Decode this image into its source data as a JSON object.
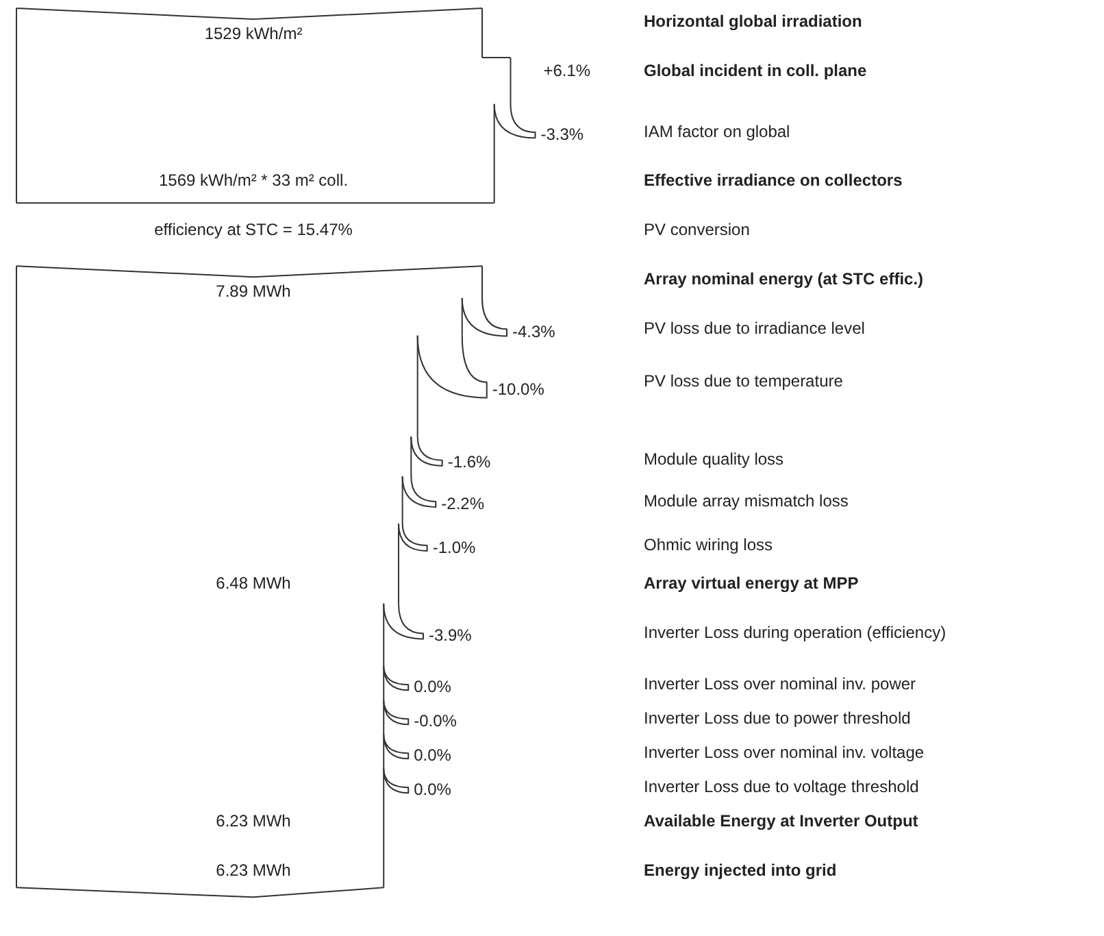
{
  "chart_data": {
    "type": "other",
    "categories": [
      "Horizontal global irradiation",
      "Global incident in coll. plane",
      "IAM factor on global",
      "Effective irradiance on collectors",
      "PV conversion",
      "Array nominal energy (at STC effic.)",
      "PV loss due to irradiance level",
      "PV loss due to temperature",
      "Module quality loss",
      "Module array mismatch loss",
      "Ohmic wiring loss",
      "Array virtual energy at MPP",
      "Inverter Loss during operation (efficiency)",
      "Inverter Loss over nominal inv. power",
      "Inverter Loss due to power threshold",
      "Inverter Loss over nominal inv. voltage",
      "Inverter Loss due to voltage threshold",
      "Available Energy at Inverter Output",
      "Energy injected into grid"
    ],
    "series": [
      {
        "color": "#333333",
        "values": [
          1529,
          null,
          null,
          1569,
          15.47,
          7.89,
          null,
          null,
          null,
          null,
          null,
          6.48,
          null,
          null,
          null,
          null,
          null,
          6.23,
          6.23
        ],
        "value_labels": [
          "1529 kWh/m²",
          null,
          null,
          "1569 kWh/m² * 33 m² coll.",
          "efficiency at STC = 15.47%",
          "7.89 MWh",
          null,
          null,
          null,
          null,
          null,
          "6.48 MWh",
          null,
          null,
          null,
          null,
          null,
          "6.23 MWh",
          "6.23 MWh"
        ]
      },
      {
        "color": "#333333",
        "values": [
          null,
          6.1,
          -3.3,
          null,
          null,
          null,
          -4.3,
          -10.0,
          -1.6,
          -2.2,
          -1.0,
          null,
          -3.9,
          0.0,
          -0.0,
          0.0,
          0.0,
          null,
          null
        ],
        "value_labels": [
          null,
          "+6.1%",
          "-3.3%",
          null,
          null,
          null,
          "-4.3%",
          "-10.0%",
          "-1.6%",
          "-2.2%",
          "-1.0%",
          null,
          "-3.9%",
          "0.0%",
          "-0.0%",
          "0.0%",
          "0.0%",
          null,
          null
        ]
      }
    ]
  }
}
